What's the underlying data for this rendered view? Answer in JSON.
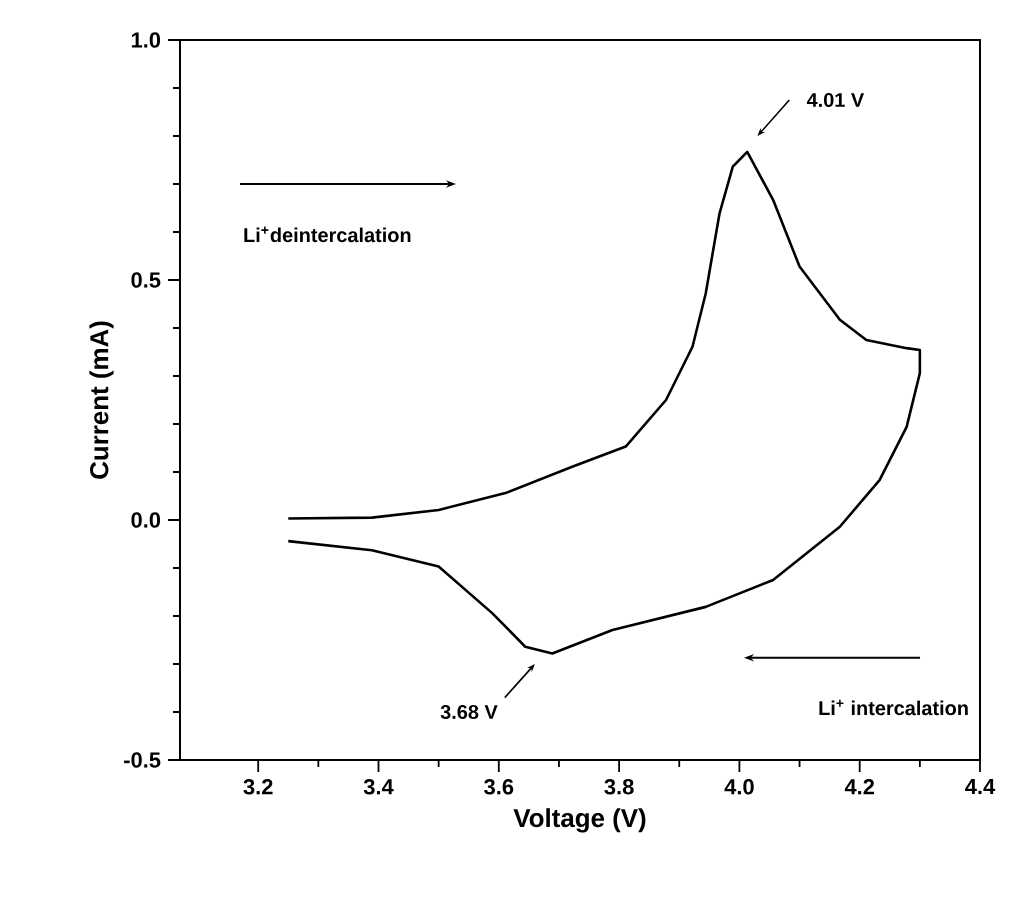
{
  "chart_data": {
    "type": "line",
    "xlabel": "Voltage (V)",
    "ylabel": "Current (mA)",
    "xlim": [
      3.07,
      4.4
    ],
    "ylim": [
      -0.5,
      1.0
    ],
    "xticks": [
      3.2,
      3.4,
      3.6,
      3.8,
      {
        "value": 4.0,
        "label": "4.0"
      },
      4.2,
      4.4
    ],
    "yticks": [
      -0.5,
      {
        "value": 0,
        "label": "0.0"
      },
      0.5,
      {
        "value": 1.0,
        "label": "1.0"
      }
    ],
    "series": [
      {
        "color": "#000000",
        "x": [
          3.25,
          3.389,
          3.5,
          3.611,
          3.722,
          3.811,
          3.878,
          3.922,
          3.944,
          3.967,
          3.989,
          4.013,
          4.056,
          4.1,
          4.167,
          4.211,
          4.278,
          4.3,
          4.3,
          4.278,
          4.233,
          4.167,
          4.056,
          3.944,
          3.789,
          3.689,
          3.644,
          3.589,
          3.5,
          3.389,
          3.25
        ],
        "values": [
          0.003,
          0.005,
          0.021,
          0.056,
          0.111,
          0.153,
          0.25,
          0.361,
          0.472,
          0.639,
          0.736,
          0.767,
          0.667,
          0.528,
          0.417,
          0.375,
          0.358,
          0.354,
          0.306,
          0.194,
          0.083,
          -0.014,
          -0.125,
          -0.181,
          -0.229,
          -0.278,
          -0.264,
          -0.194,
          -0.097,
          -0.063,
          -0.044
        ]
      }
    ],
    "annotations": [
      "4.01 V",
      "3.68 V",
      "Li$^{+}$deintercalation",
      "Li$^{+}$ intercalation"
    ]
  }
}
